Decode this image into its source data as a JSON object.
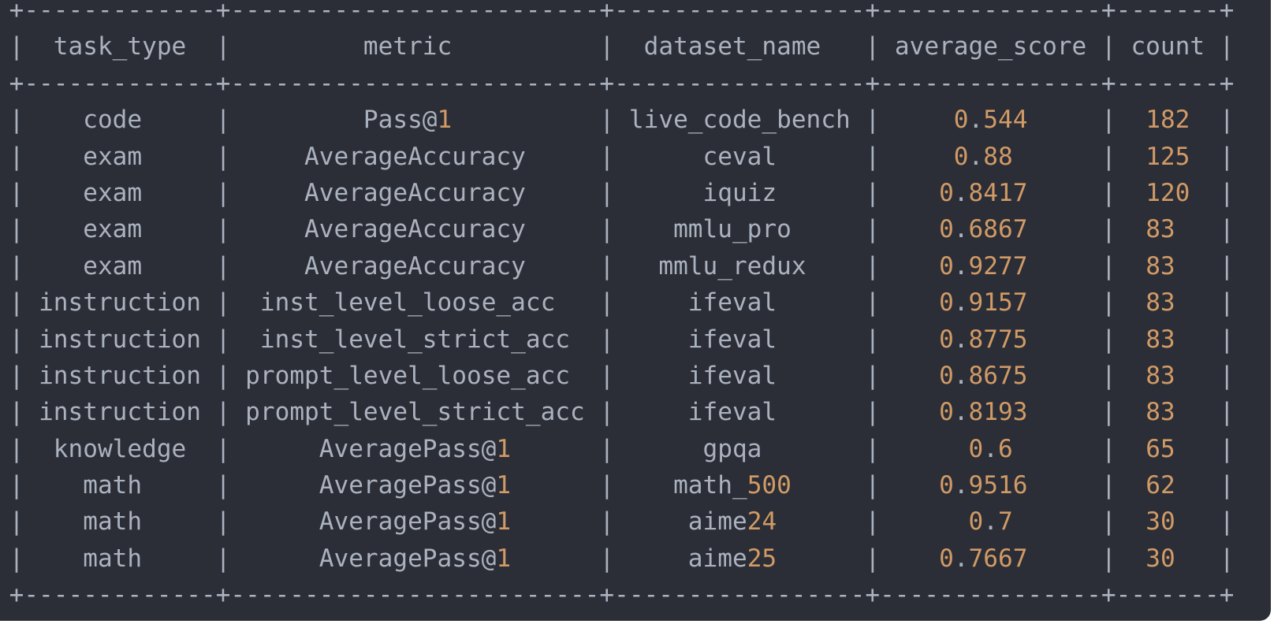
{
  "colors": {
    "background": "#2b2e36",
    "text": "#abb2bf",
    "number": "#d19a66"
  },
  "table": {
    "headers": [
      "task_type",
      "metric",
      "dataset_name",
      "average_score",
      "count"
    ],
    "rows": [
      [
        "code",
        "Pass@1",
        "live_code_bench",
        "0.544",
        "182"
      ],
      [
        "exam",
        "AverageAccuracy",
        "ceval",
        "0.88",
        "125"
      ],
      [
        "exam",
        "AverageAccuracy",
        "iquiz",
        "0.8417",
        "120"
      ],
      [
        "exam",
        "AverageAccuracy",
        "mmlu_pro",
        "0.6867",
        "83"
      ],
      [
        "exam",
        "AverageAccuracy",
        "mmlu_redux",
        "0.9277",
        "83"
      ],
      [
        "instruction",
        "inst_level_loose_acc",
        "ifeval",
        "0.9157",
        "83"
      ],
      [
        "instruction",
        "inst_level_strict_acc",
        "ifeval",
        "0.8775",
        "83"
      ],
      [
        "instruction",
        "prompt_level_loose_acc",
        "ifeval",
        "0.8675",
        "83"
      ],
      [
        "instruction",
        "prompt_level_strict_acc",
        "ifeval",
        "0.8193",
        "83"
      ],
      [
        "knowledge",
        "AveragePass@1",
        "gpqa",
        "0.6",
        "65"
      ],
      [
        "math",
        "AveragePass@1",
        "math_500",
        "0.9516",
        "62"
      ],
      [
        "math",
        "AveragePass@1",
        "aime24",
        "0.7",
        "30"
      ],
      [
        "math",
        "AveragePass@1",
        "aime25",
        "0.7667",
        "30"
      ]
    ]
  }
}
